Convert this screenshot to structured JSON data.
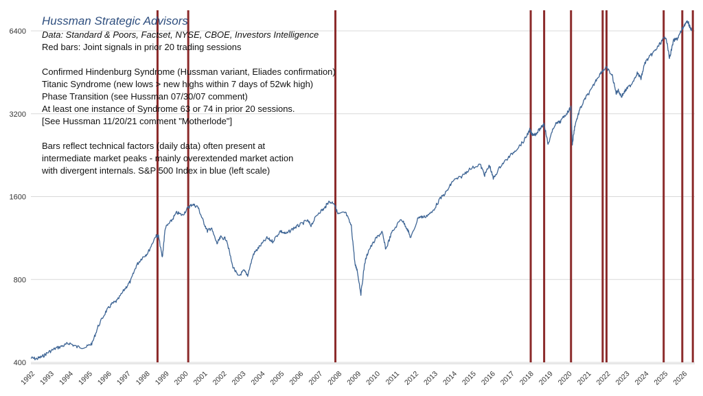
{
  "chart_data": {
    "type": "line",
    "title": "Hussman Strategic Advisors",
    "subtitle": "Data: Standard & Poors, Factset, NYSE, CBOE, Investors Intelligence",
    "notes": [
      "Red bars: Joint signals in prior 20 trading sessions",
      "",
      "Confirmed Hindenburg Syndrome (Hussman variant, Eliades confirmation)",
      "Titanic Syndrome (new lows > new highs within 7 days of 52wk high)",
      "Phase Transition (see Hussman 07/30/07 comment)",
      "At least one instance of Syndrome 63 or 74 in prior 20 sessions.",
      "[See Hussman 11/20/21 comment \"Motherlode\"]",
      "",
      "Bars reflect technical factors (daily data) often present at",
      "intermediate market peaks - mainly overextended market action",
      "with divergent internals. S&P 500 Index in blue (left scale)"
    ],
    "y_scale": "log",
    "y_ticks": [
      400,
      800,
      1600,
      3200,
      6400
    ],
    "y_tick_labels": [
      "400",
      "800",
      "1600",
      "3200",
      "6400"
    ],
    "x_range": [
      1992,
      2026.6
    ],
    "x_ticks": [
      "1992",
      "1993",
      "1994",
      "1995",
      "1996",
      "1997",
      "1998",
      "1999",
      "2000",
      "2001",
      "2002",
      "2003",
      "2004",
      "2005",
      "2006",
      "2007",
      "2008",
      "2009",
      "2010",
      "2011",
      "2012",
      "2013",
      "2014",
      "2015",
      "2016",
      "2017",
      "2018",
      "2019",
      "2020",
      "2021",
      "2022",
      "2023",
      "2024",
      "2025",
      "2026"
    ],
    "grid": true,
    "series": [
      {
        "color": "#3d6494",
        "x": [
          1992.0,
          1992.3,
          1992.6,
          1992.9,
          1993.3,
          1993.7,
          1994.0,
          1994.4,
          1994.9,
          1995.2,
          1995.5,
          1995.9,
          1996.2,
          1996.5,
          1996.9,
          1997.2,
          1997.5,
          1997.8,
          1998.1,
          1998.5,
          1998.65,
          1998.85,
          1999.0,
          1999.3,
          1999.6,
          1999.9,
          2000.2,
          2000.4,
          2000.7,
          2000.95,
          2001.2,
          2001.4,
          2001.7,
          2001.9,
          2002.2,
          2002.5,
          2002.8,
          2003.1,
          2003.3,
          2003.6,
          2003.9,
          2004.3,
          2004.6,
          2005.0,
          2005.3,
          2005.7,
          2006.0,
          2006.4,
          2006.6,
          2007.0,
          2007.3,
          2007.5,
          2007.8,
          2008.0,
          2008.4,
          2008.7,
          2008.9,
          2009.0,
          2009.2,
          2009.4,
          2009.6,
          2010.0,
          2010.3,
          2010.5,
          2010.8,
          2011.3,
          2011.6,
          2011.8,
          2012.2,
          2012.5,
          2012.9,
          2013.3,
          2013.7,
          2014.0,
          2014.4,
          2014.8,
          2015.4,
          2015.65,
          2015.9,
          2016.1,
          2016.5,
          2016.9,
          2017.3,
          2017.7,
          2018.0,
          2018.1,
          2018.3,
          2018.6,
          2018.75,
          2018.95,
          2019.3,
          2019.6,
          2019.95,
          2020.15,
          2020.22,
          2020.35,
          2020.6,
          2020.9,
          2021.2,
          2021.5,
          2021.8,
          2022.0,
          2022.3,
          2022.5,
          2022.6,
          2022.78,
          2023.0,
          2023.3,
          2023.6,
          2023.8,
          2024.0,
          2024.3,
          2024.6,
          2024.9,
          2025.1,
          2025.28,
          2025.5,
          2025.7,
          2025.9,
          2026.1,
          2026.25,
          2026.35,
          2026.45
        ],
        "y": [
          415,
          412,
          420,
          435,
          450,
          460,
          470,
          455,
          455,
          470,
          540,
          610,
          650,
          670,
          740,
          790,
          900,
          960,
          1000,
          1150,
          1150,
          960,
          1230,
          1300,
          1400,
          1370,
          1460,
          1500,
          1470,
          1320,
          1200,
          1230,
          1080,
          1140,
          1120,
          900,
          820,
          860,
          830,
          990,
          1050,
          1130,
          1100,
          1200,
          1170,
          1230,
          1260,
          1310,
          1260,
          1400,
          1450,
          1530,
          1520,
          1380,
          1400,
          1250,
          900,
          870,
          710,
          920,
          1020,
          1130,
          1190,
          1030,
          1180,
          1330,
          1230,
          1130,
          1350,
          1350,
          1400,
          1560,
          1680,
          1830,
          1880,
          2000,
          2100,
          1920,
          2080,
          1860,
          2080,
          2220,
          2380,
          2550,
          2800,
          2700,
          2700,
          2850,
          2950,
          2480,
          2920,
          3000,
          3230,
          3380,
          2480,
          2900,
          3300,
          3650,
          3900,
          4300,
          4600,
          4700,
          4400,
          3800,
          3900,
          3700,
          3900,
          4100,
          4500,
          4300,
          4900,
          5200,
          5500,
          5900,
          6100,
          5100,
          5900,
          6000,
          6400,
          6800,
          6900,
          6600,
          6400
        ]
      }
    ],
    "signal_bars": [
      1998.6,
      2000.2,
      2007.87,
      2018.05,
      2018.75,
      2020.15,
      2021.8,
      2022.0,
      2024.98,
      2025.95,
      2026.5
    ]
  }
}
